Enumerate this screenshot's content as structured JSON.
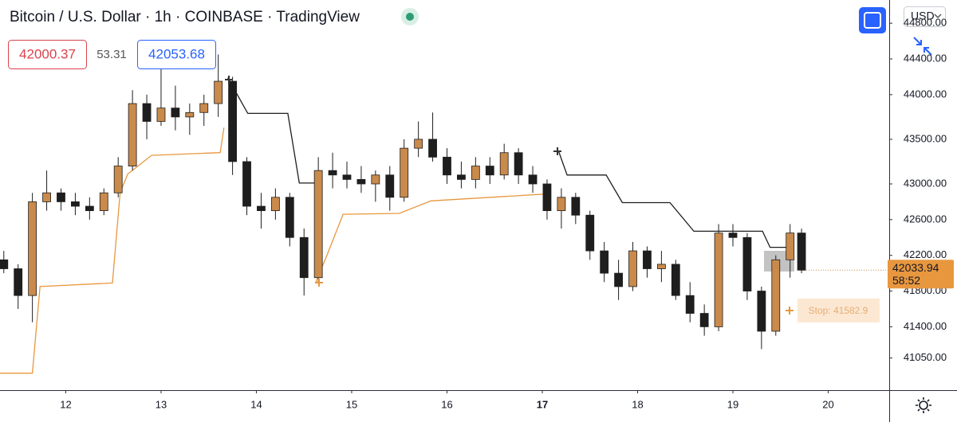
{
  "chart_data": {
    "type": "candlestick",
    "title": "Bitcoin / U.S. Dollar · 1h · COINBASE · TradingView",
    "currency": "USD",
    "indicator_values": [
      42000.37,
      53.31,
      42053.68
    ],
    "countdown": "58:52",
    "stop": {
      "value": 41582.9,
      "label": "Stop: 41582.9"
    },
    "up_color": "#c98a4b",
    "down_color": "#1e1e1e",
    "xlim": [
      11.31,
      20.64
    ],
    "xticks": [
      12,
      13,
      14,
      15,
      16,
      17,
      18,
      19,
      20
    ],
    "bold_xticks": [
      17
    ],
    "ylim": [
      40690,
      45060
    ],
    "yticks": [
      {
        "value": 44800,
        "label": "44800.00"
      },
      {
        "value": 44400,
        "label": "44400.00"
      },
      {
        "value": 44000,
        "label": "44000.00"
      },
      {
        "value": 43500,
        "label": "43500.00"
      },
      {
        "value": 43000,
        "label": "43000.00"
      },
      {
        "value": 42600,
        "label": "42600.00"
      },
      {
        "value": 42200,
        "label": "42200.00"
      },
      {
        "value": 41800,
        "label": "41800.00"
      },
      {
        "value": 41400,
        "label": "41400.00"
      },
      {
        "value": 41050,
        "label": "41050.00"
      }
    ],
    "x": [
      11.35,
      11.5,
      11.65,
      11.8,
      11.95,
      12.1,
      12.25,
      12.4,
      12.55,
      12.7,
      12.85,
      13.0,
      13.15,
      13.3,
      13.45,
      13.6,
      13.75,
      13.9,
      14.05,
      14.2,
      14.35,
      14.5,
      14.65,
      14.8,
      14.95,
      15.1,
      15.25,
      15.4,
      15.55,
      15.7,
      15.85,
      16.0,
      16.15,
      16.3,
      16.45,
      16.6,
      16.75,
      16.9,
      17.05,
      17.2,
      17.35,
      17.5,
      17.65,
      17.8,
      17.95,
      18.1,
      18.25,
      18.4,
      18.55,
      18.7,
      18.85,
      19.0,
      19.15,
      19.3,
      19.45,
      19.6,
      19.72
    ],
    "open": [
      42150,
      42050,
      41750,
      42800,
      42900,
      42800,
      42750,
      42700,
      42900,
      43200,
      43900,
      43700,
      43850,
      43750,
      43800,
      43900,
      44150,
      43250,
      42750,
      42700,
      42850,
      42400,
      41950,
      43150,
      43100,
      43050,
      43000,
      43100,
      42850,
      43400,
      43500,
      43300,
      43100,
      43050,
      43200,
      43100,
      43350,
      43100,
      43000,
      42700,
      42850,
      42650,
      42250,
      42000,
      41850,
      42250,
      42050,
      42100,
      41750,
      41550,
      41400,
      42450,
      42400,
      41800,
      41350,
      42150,
      42450
    ],
    "high": [
      42250,
      42100,
      42900,
      43150,
      42950,
      42900,
      42850,
      42950,
      43300,
      44050,
      44000,
      44300,
      44100,
      43900,
      44000,
      44450,
      44200,
      43300,
      42900,
      42950,
      42900,
      42500,
      43300,
      43350,
      43250,
      43200,
      43150,
      43200,
      43500,
      43700,
      43800,
      43400,
      43250,
      43300,
      43300,
      43450,
      43400,
      43200,
      43050,
      42950,
      42900,
      42700,
      42350,
      42150,
      42350,
      42300,
      42250,
      42150,
      41900,
      41650,
      42550,
      42550,
      42450,
      41850,
      42200,
      42550,
      42500
    ],
    "low": [
      42000,
      41600,
      41450,
      42700,
      42700,
      42650,
      42600,
      42650,
      42850,
      43150,
      43500,
      43650,
      43600,
      43550,
      43650,
      43750,
      43100,
      42650,
      42500,
      42600,
      42300,
      41750,
      41900,
      42950,
      42950,
      42900,
      42800,
      42700,
      42800,
      43300,
      43250,
      43000,
      42950,
      42950,
      43000,
      43050,
      43000,
      42900,
      42600,
      42500,
      42550,
      42150,
      41900,
      41700,
      41800,
      41950,
      41900,
      41700,
      41450,
      41300,
      41350,
      42300,
      41700,
      41150,
      41300,
      41950,
      42000
    ],
    "close": [
      42050,
      41750,
      42800,
      42900,
      42800,
      42750,
      42700,
      42900,
      43200,
      43900,
      43700,
      43850,
      43750,
      43800,
      43900,
      44150,
      43250,
      42750,
      42700,
      42850,
      42400,
      41950,
      43150,
      43100,
      43050,
      43000,
      43100,
      42850,
      43400,
      43500,
      43300,
      43100,
      43050,
      43200,
      43100,
      43350,
      43100,
      43000,
      42700,
      42850,
      42650,
      42250,
      42000,
      41850,
      42250,
      42050,
      42100,
      41750,
      41550,
      41400,
      42450,
      42400,
      41800,
      41350,
      42150,
      42450,
      42033.94
    ],
    "overlays": [
      {
        "color": "#1e1e1e",
        "x": [
          13.7,
          13.91,
          14.33,
          14.45,
          14.62,
          null,
          17.17,
          17.26,
          17.67,
          17.84,
          18.34,
          18.59,
          19.31,
          19.39,
          19.64
        ],
        "values": [
          44190,
          43790,
          43790,
          43010,
          43010,
          null,
          43370,
          43100,
          43100,
          42790,
          42790,
          42470,
          42470,
          42290,
          42290
        ]
      },
      {
        "color": "#e8973f",
        "x": [
          11.31,
          11.65,
          11.73,
          12.49,
          12.57,
          12.65,
          12.9,
          13.62,
          13.66,
          null,
          14.62,
          14.74,
          14.91,
          15.5,
          15.83,
          17.09
        ],
        "values": [
          40880,
          40880,
          41850,
          41890,
          42900,
          43110,
          43320,
          43350,
          43630,
          null,
          41890,
          42200,
          42660,
          42670,
          42810,
          42890
        ]
      }
    ]
  }
}
